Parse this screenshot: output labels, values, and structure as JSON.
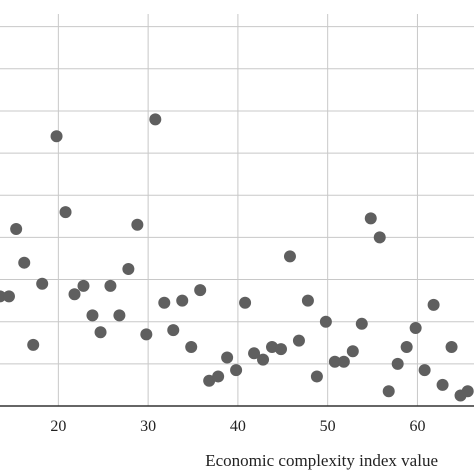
{
  "chart_data": {
    "type": "scatter",
    "title": "",
    "xlabel": "Economic complexity index value",
    "ylabel": "",
    "xlim": [
      13.5,
      66.3
    ],
    "ylim": [
      0,
      9.3
    ],
    "grid": true,
    "point_color": "#5f5f5f",
    "x_ticks": [
      20,
      30,
      40,
      50,
      60
    ],
    "y_gridlines": [
      1,
      2,
      3,
      4,
      5,
      6,
      7,
      8,
      9
    ],
    "points": [
      {
        "x": 13.5,
        "y": 2.6
      },
      {
        "x": 14.5,
        "y": 2.6
      },
      {
        "x": 15.3,
        "y": 4.2
      },
      {
        "x": 16.2,
        "y": 3.4
      },
      {
        "x": 17.2,
        "y": 1.45
      },
      {
        "x": 18.2,
        "y": 2.9
      },
      {
        "x": 19.8,
        "y": 6.4
      },
      {
        "x": 20.8,
        "y": 4.6
      },
      {
        "x": 21.8,
        "y": 2.65
      },
      {
        "x": 22.8,
        "y": 2.85
      },
      {
        "x": 23.8,
        "y": 2.15
      },
      {
        "x": 24.7,
        "y": 1.75
      },
      {
        "x": 25.8,
        "y": 2.85
      },
      {
        "x": 26.8,
        "y": 2.15
      },
      {
        "x": 27.8,
        "y": 3.25
      },
      {
        "x": 28.8,
        "y": 4.3
      },
      {
        "x": 29.8,
        "y": 1.7
      },
      {
        "x": 30.8,
        "y": 6.8
      },
      {
        "x": 31.8,
        "y": 2.45
      },
      {
        "x": 32.8,
        "y": 1.8
      },
      {
        "x": 33.8,
        "y": 2.5
      },
      {
        "x": 34.8,
        "y": 1.4
      },
      {
        "x": 35.8,
        "y": 2.75
      },
      {
        "x": 36.8,
        "y": 0.6
      },
      {
        "x": 37.8,
        "y": 0.7
      },
      {
        "x": 38.8,
        "y": 1.15
      },
      {
        "x": 39.8,
        "y": 0.85
      },
      {
        "x": 40.8,
        "y": 2.45
      },
      {
        "x": 41.8,
        "y": 1.25
      },
      {
        "x": 42.8,
        "y": 1.1
      },
      {
        "x": 43.8,
        "y": 1.4
      },
      {
        "x": 44.8,
        "y": 1.35
      },
      {
        "x": 45.8,
        "y": 3.55
      },
      {
        "x": 46.8,
        "y": 1.55
      },
      {
        "x": 47.8,
        "y": 2.5
      },
      {
        "x": 48.8,
        "y": 0.7
      },
      {
        "x": 49.8,
        "y": 2.0
      },
      {
        "x": 50.8,
        "y": 1.05
      },
      {
        "x": 51.8,
        "y": 1.05
      },
      {
        "x": 52.8,
        "y": 1.3
      },
      {
        "x": 53.8,
        "y": 1.95
      },
      {
        "x": 54.8,
        "y": 4.45
      },
      {
        "x": 55.8,
        "y": 4.0
      },
      {
        "x": 56.8,
        "y": 0.35
      },
      {
        "x": 57.8,
        "y": 1.0
      },
      {
        "x": 58.8,
        "y": 1.4
      },
      {
        "x": 59.8,
        "y": 1.85
      },
      {
        "x": 60.8,
        "y": 0.85
      },
      {
        "x": 61.8,
        "y": 2.4
      },
      {
        "x": 62.8,
        "y": 0.5
      },
      {
        "x": 63.8,
        "y": 1.4
      },
      {
        "x": 64.8,
        "y": 0.25
      },
      {
        "x": 65.6,
        "y": 0.35
      }
    ]
  }
}
